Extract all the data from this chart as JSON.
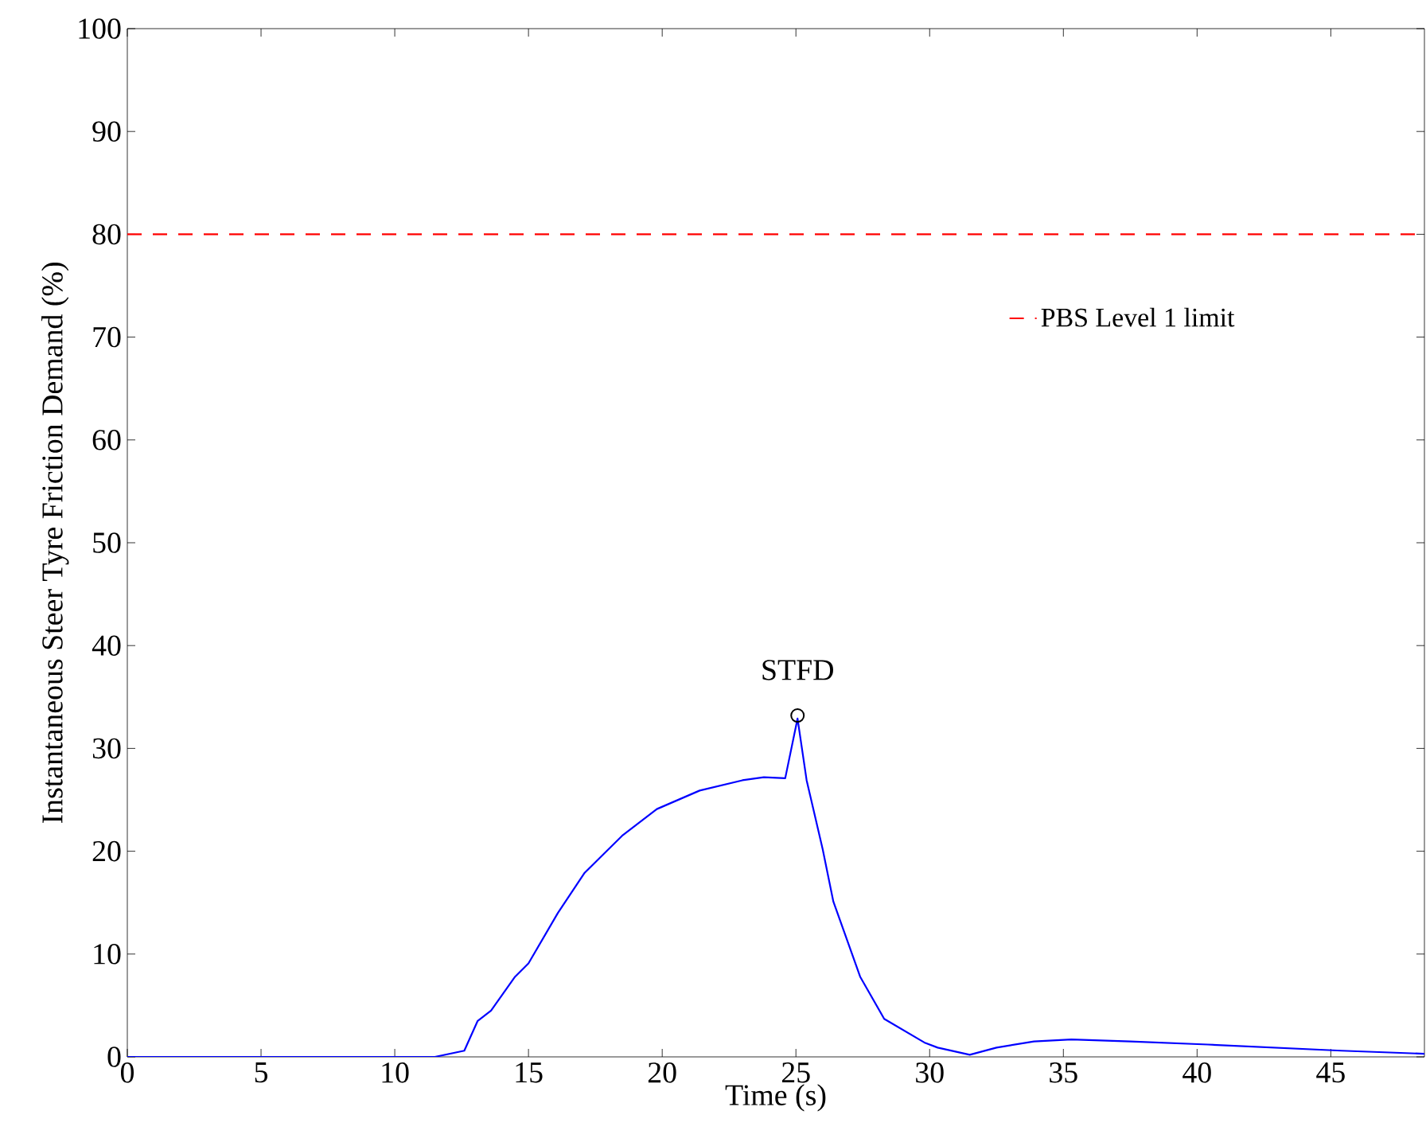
{
  "chart_data": {
    "type": "line",
    "xlabel": "Time (s)",
    "ylabel": "Instantaneous Steer Tyre Friction Demand (%)",
    "xlim": [
      0,
      48.5
    ],
    "ylim": [
      0,
      100
    ],
    "xticks": [
      0,
      5,
      10,
      15,
      20,
      25,
      30,
      35,
      40,
      45
    ],
    "yticks": [
      0,
      10,
      20,
      30,
      40,
      50,
      60,
      70,
      80,
      90,
      100
    ],
    "grid": false,
    "legend": "top right",
    "line_style": "solid",
    "series": [
      {
        "color": "#0000ff",
        "marker": "none",
        "x": [
          0,
          10,
          11.5,
          12.6,
          13.1,
          13.6,
          14.5,
          15.0,
          16.1,
          17.1,
          18.5,
          19.8,
          21.4,
          23.0,
          23.8,
          24.6,
          25.06,
          25.4,
          26.0,
          26.4,
          27.4,
          28.3,
          29.8,
          30.3,
          31.5,
          32.5,
          33.9,
          35.3,
          37.5,
          40.4,
          45.4,
          48.5
        ],
        "values": [
          0,
          0,
          0,
          0.6,
          3.5,
          4.5,
          7.8,
          9.1,
          14.0,
          17.9,
          21.5,
          24.1,
          25.9,
          26.9,
          27.2,
          27.1,
          32.9,
          26.9,
          20.2,
          15.1,
          7.8,
          3.7,
          1.4,
          0.9,
          0.2,
          0.9,
          1.5,
          1.7,
          1.5,
          1.2,
          0.6,
          0.3
        ]
      },
      {
        "type": "scatter",
        "color": "#000000",
        "marker": "circle",
        "x": [
          25.06
        ],
        "values": [
          33.2
        ]
      }
    ],
    "ref_lines": [
      {
        "axis": "y",
        "value": 80,
        "label": "PBS Level 1 limit",
        "color": "#ff0000",
        "line_style": "dashed"
      }
    ],
    "annotations": [
      {
        "text": "STFD",
        "x": 25.06,
        "y": 33.2
      }
    ]
  }
}
